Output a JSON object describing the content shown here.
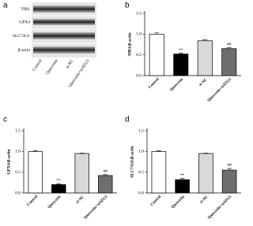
{
  "blot": {
    "panel": "a",
    "proteins": [
      "TfR1",
      "GPX4",
      "SLC7A11",
      "β-actin"
    ],
    "lanes": [
      "Control",
      "Quercetin",
      "si-NC",
      "Quercetin+siATG5"
    ]
  },
  "chart_data": [
    {
      "type": "bar",
      "panel": "b",
      "y_label": "TfR1/β-actin",
      "categories": [
        "Control",
        "Quercetin",
        "si-NC",
        "Quercetin+siATG5"
      ],
      "values": [
        1.0,
        0.52,
        0.84,
        0.65
      ],
      "errors": [
        0.03,
        0.02,
        0.02,
        0.03
      ],
      "annotations": [
        null,
        "**",
        null,
        "##"
      ],
      "colors": [
        "#ffffff",
        "#000000",
        "#d9d9d9",
        "#6e6e6e"
      ],
      "ylim": [
        0,
        1.5
      ],
      "yticks": [
        {
          "value": 0,
          "label": "0.0"
        },
        {
          "value": 0.5,
          "label": "0.5"
        },
        {
          "value": 1,
          "label": "1.0"
        },
        {
          "value": 1.5,
          "label": "1.5"
        }
      ]
    },
    {
      "type": "bar",
      "panel": "c",
      "y_label": "GPX4/β-actin",
      "categories": [
        "Control",
        "Quercetin",
        "si-NC",
        "Quercetin+siATG5"
      ],
      "values": [
        1.0,
        0.2,
        0.95,
        0.42
      ],
      "errors": [
        0.02,
        0.02,
        0.01,
        0.02
      ],
      "annotations": [
        null,
        "**",
        null,
        "##"
      ],
      "colors": [
        "#ffffff",
        "#000000",
        "#d9d9d9",
        "#6e6e6e"
      ],
      "ylim": [
        0,
        1.5
      ],
      "yticks": [
        {
          "value": 0,
          "label": "0.0"
        },
        {
          "value": 0.5,
          "label": "0.5"
        },
        {
          "value": 1,
          "label": "1.0"
        },
        {
          "value": 1.5,
          "label": "1.5"
        }
      ]
    },
    {
      "type": "bar",
      "panel": "d",
      "y_label": "SLC7A11/β-actin",
      "categories": [
        "Control",
        "Quercetin",
        "si-NC",
        "Quercetin+siATG5"
      ],
      "values": [
        1.0,
        0.32,
        0.95,
        0.55
      ],
      "errors": [
        0.02,
        0.03,
        0.01,
        0.04
      ],
      "annotations": [
        null,
        "**",
        null,
        "##"
      ],
      "colors": [
        "#ffffff",
        "#000000",
        "#d9d9d9",
        "#6e6e6e"
      ],
      "ylim": [
        0,
        1.5
      ],
      "yticks": [
        {
          "value": 0,
          "label": "0.0"
        },
        {
          "value": 0.5,
          "label": "0.5"
        },
        {
          "value": 1,
          "label": "1.0"
        },
        {
          "value": 1.5,
          "label": "1.5"
        }
      ]
    }
  ]
}
